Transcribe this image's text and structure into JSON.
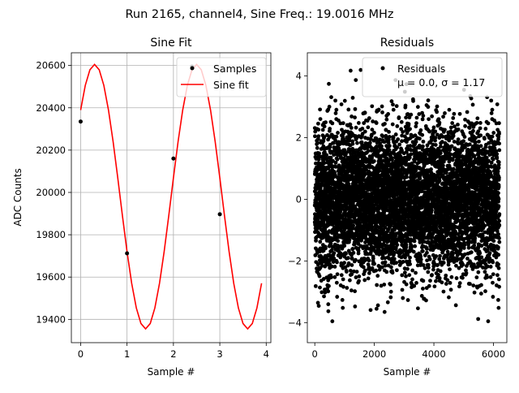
{
  "chart_data": {
    "suptitle": "Run 2165, channel4, Sine Freq.: 19.0016 MHz",
    "panels": [
      {
        "id": "fit",
        "title": "Sine Fit",
        "xlabel": "Sample #",
        "ylabel": "ADC Counts",
        "xlim": [
          -0.2,
          4.1
        ],
        "ylim": [
          19290,
          20660
        ],
        "grid": true,
        "xticks": [
          0,
          1,
          2,
          3,
          4
        ],
        "yticks": [
          19400,
          19600,
          19800,
          20000,
          20200,
          20400,
          20600
        ],
        "legend": {
          "placement": "top-right",
          "entries": [
            "Samples",
            "Sine fit"
          ]
        },
        "samples": {
          "name": "Samples",
          "type": "scatter",
          "color": "#000000",
          "x": [
            0.0,
            1.0,
            2.0,
            2.4,
            3.0
          ],
          "y": [
            20335,
            19712,
            20160,
            20595,
            19897
          ]
        },
        "sine_fit": {
          "name": "Sine fit",
          "type": "line",
          "color": "#ff0000",
          "offset": 19980,
          "amplitude": 625,
          "period": 2.2,
          "phase_x": 0.3,
          "x_start": 0.0,
          "x_end": 3.9,
          "n_points": 40
        }
      },
      {
        "id": "residuals",
        "title": "Residuals",
        "xlabel": "Sample #",
        "ylabel": "",
        "xlim": [
          -250,
          6450
        ],
        "ylim": [
          -4.65,
          4.75
        ],
        "grid": false,
        "xticks": [
          0,
          2000,
          4000,
          6000
        ],
        "yticks": [
          -4,
          -2,
          0,
          2,
          4
        ],
        "legend": {
          "placement": "top-right",
          "entries": [
            "Residuals",
            "μ = 0.0, σ = 1.17"
          ]
        },
        "residuals": {
          "name": "Residuals",
          "type": "scatter",
          "color": "#000000",
          "n_points": 6200,
          "mean": 0.0,
          "sigma": 1.17,
          "x_start": 0,
          "x_end": 6200
        }
      }
    ]
  }
}
